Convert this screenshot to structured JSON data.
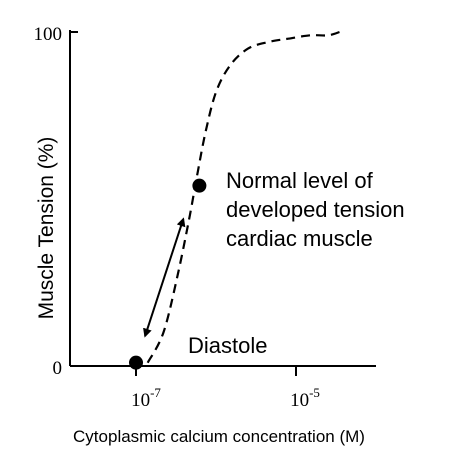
{
  "chart_data": {
    "type": "line",
    "title": "",
    "xlabel": "Cytoplasmic calcium concentration (M)",
    "ylabel": "Muscle Tension (%)",
    "x_scale": "log",
    "xlim": [
      1e-08,
      0.0001
    ],
    "ylim": [
      0,
      100
    ],
    "x_ticks": [
      {
        "value": 1e-07,
        "base": "10",
        "exp": "-7"
      },
      {
        "value": 1e-05,
        "base": "10",
        "exp": "-5"
      }
    ],
    "y_ticks": [
      {
        "value": 0,
        "label": "0"
      },
      {
        "value": 100,
        "label": "100"
      }
    ],
    "grid": false,
    "series": [
      {
        "line_style": "dashed",
        "color": "#000000",
        "x": [
          1.4e-07,
          2.2e-07,
          3.3e-07,
          4.7e-07,
          5.9e-07,
          7.4e-07,
          1e-06,
          1.5e-06,
          2.5e-06,
          4.5e-06,
          8e-06,
          1.5e-05,
          2.5e-05,
          3.5e-05
        ],
        "y": [
          1,
          10,
          27,
          45,
          58,
          70,
          82,
          90,
          95,
          97,
          98,
          99,
          99,
          100
        ]
      }
    ],
    "points": [
      {
        "x": 1e-07,
        "y": 1
      },
      {
        "x": 6.2e-07,
        "y": 54
      }
    ],
    "annotations": [
      {
        "text": "Diastole"
      },
      {
        "lines": [
          "Normal level of",
          "developed tension",
          "cardiac muscle"
        ]
      }
    ],
    "arrow": {
      "style": "double-headed",
      "from": {
        "x": 1.3e-07,
        "y": 9
      },
      "to": {
        "x": 3.9e-07,
        "y": 44
      }
    }
  }
}
